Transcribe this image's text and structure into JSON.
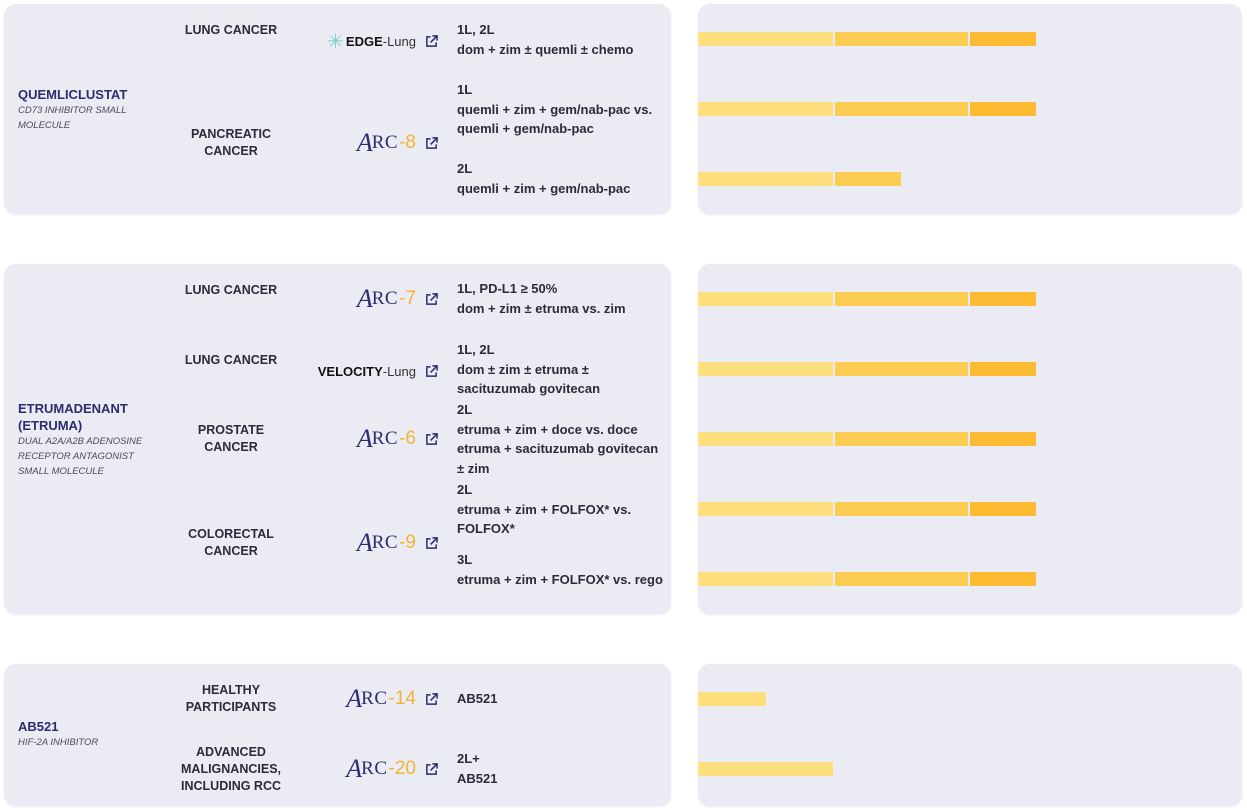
{
  "colors": {
    "card_bg": "#ebebf3",
    "drug_name": "#2a2d6e",
    "arc_number": "#f5b335",
    "phase1": "#fde07d",
    "phase2": "#fdcc52",
    "phase3": "#fdbb33"
  },
  "groups": [
    {
      "drug": {
        "name": "QUEMLICLUSTAT",
        "description": "CD73 INHIBITOR SMALL MOLECULE"
      },
      "indications": [
        {
          "name": "LUNG CANCER",
          "trial": {
            "bold": "EDGE",
            "light": "-Lung",
            "icon": "external-link-icon"
          },
          "designs": [
            {
              "line": "1L, 2L",
              "regimen": "dom + zim ± quemli ± chemo",
              "progress_phases": 3
            }
          ]
        },
        {
          "name": "PANCREATIC CANCER",
          "trial": {
            "prefix": "ARC",
            "number": "-8",
            "icon": "external-link-icon"
          },
          "designs": [
            {
              "line": "1L",
              "regimen": "quemli + zim + gem/nab-pac vs. quemli + gem/nab-pac",
              "progress_phases": 3
            },
            {
              "line": "2L",
              "regimen": "quemli + zim + gem/nab-pac",
              "progress_phases": 1.5
            }
          ]
        }
      ]
    },
    {
      "drug": {
        "name": "ETRUMADENANT (ETRUMA)",
        "description": "DUAL A2A/A2B ADENOSINE RECEPTOR ANTAGONIST SMALL MOLECULE"
      },
      "indications": [
        {
          "name": "LUNG CANCER",
          "trial": {
            "prefix": "ARC",
            "number": "-7",
            "icon": "external-link-icon"
          },
          "designs": [
            {
              "line": "1L, PD-L1 ≥ 50%",
              "regimen": "dom + zim ± etruma vs. zim",
              "progress_phases": 3
            }
          ]
        },
        {
          "name": "LUNG CANCER",
          "trial": {
            "bold": "VELOCITY",
            "light": "-Lung",
            "icon": "external-link-icon"
          },
          "designs": [
            {
              "line": "1L, 2L",
              "regimen": "dom ± zim ± etruma ± sacituzumab govitecan",
              "progress_phases": 3
            }
          ]
        },
        {
          "name": "PROSTATE CANCER",
          "trial": {
            "prefix": "ARC",
            "number": "-6",
            "icon": "external-link-icon"
          },
          "designs": [
            {
              "line": "2L",
              "regimen": "etruma + zim + doce vs. doce etruma + sacituzumab govitecan ± zim",
              "progress_phases": 3
            }
          ]
        },
        {
          "name": "COLORECTAL CANCER",
          "trial": {
            "prefix": "ARC",
            "number": "-9",
            "icon": "external-link-icon"
          },
          "designs": [
            {
              "line": "2L",
              "regimen": "etruma + zim + FOLFOX* vs. FOLFOX*",
              "progress_phases": 3
            },
            {
              "line": "3L",
              "regimen": "etruma + zim + FOLFOX* vs. rego",
              "progress_phases": 3
            }
          ]
        }
      ]
    },
    {
      "drug": {
        "name": "AB521",
        "description": "HIF-2α INHIBITOR"
      },
      "indications": [
        {
          "name": "HEALTHY PARTICIPANTS",
          "trial": {
            "prefix": "ARC",
            "number": "-14",
            "icon": "external-link-icon"
          },
          "designs": [
            {
              "line": "",
              "regimen": "AB521",
              "progress_phases": 0.5
            }
          ]
        },
        {
          "name": "ADVANCED MALIGNANCIES, INCLUDING RCC",
          "trial": {
            "prefix": "ARC",
            "number": "-20",
            "icon": "external-link-icon"
          },
          "designs": [
            {
              "line": "2L+",
              "regimen": "AB521",
              "progress_phases": 1
            }
          ]
        }
      ]
    }
  ]
}
